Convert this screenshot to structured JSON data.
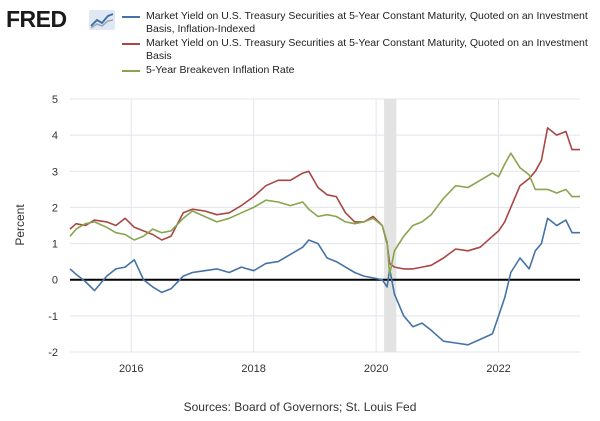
{
  "brand": {
    "name": "FRED",
    "mark_icon": "fred-chart-icon"
  },
  "source_text": "Sources: Board of Governors; St. Louis Fed",
  "legend": [
    {
      "label": "Market Yield on U.S. Treasury Securities at 5-Year Constant Maturity, Quoted on an Investment Basis, Inflation-Indexed",
      "color": "#4572a7"
    },
    {
      "label": "Market Yield on U.S. Treasury Securities at 5-Year Constant Maturity, Quoted on an Investment Basis",
      "color": "#aa4643"
    },
    {
      "label": "5-Year Breakeven Inflation Rate",
      "color": "#89a54e"
    }
  ],
  "chart_data": {
    "type": "line",
    "ylabel": "Percent",
    "xlabel": "",
    "ylim": [
      -2,
      5
    ],
    "yticks": [
      -2,
      -1,
      0,
      1,
      2,
      3,
      4,
      5
    ],
    "xlim": [
      2015.0,
      2023.33
    ],
    "xticks": [
      2016,
      2018,
      2020,
      2022
    ],
    "grid": true,
    "recession_shading": [
      [
        2020.13,
        2020.33
      ]
    ],
    "series": [
      {
        "name": "Market Yield on U.S. Treasury Securities at 5-Year Constant Maturity, Quoted on an Investment Basis, Inflation-Indexed",
        "color": "#4572a7",
        "x": [
          2015.0,
          2015.1,
          2015.25,
          2015.4,
          2015.6,
          2015.75,
          2015.9,
          2016.05,
          2016.2,
          2016.35,
          2016.5,
          2016.65,
          2016.85,
          2017.0,
          2017.2,
          2017.4,
          2017.6,
          2017.8,
          2018.0,
          2018.2,
          2018.4,
          2018.6,
          2018.8,
          2018.9,
          2019.05,
          2019.2,
          2019.35,
          2019.5,
          2019.65,
          2019.8,
          2019.95,
          2020.1,
          2020.18,
          2020.22,
          2020.3,
          2020.45,
          2020.6,
          2020.75,
          2020.9,
          2021.1,
          2021.3,
          2021.5,
          2021.7,
          2021.9,
          2022.0,
          2022.1,
          2022.2,
          2022.35,
          2022.5,
          2022.6,
          2022.7,
          2022.8,
          2022.95,
          2023.1,
          2023.2,
          2023.33
        ],
        "values": [
          0.3,
          0.15,
          -0.05,
          -0.3,
          0.1,
          0.3,
          0.35,
          0.55,
          0.0,
          -0.2,
          -0.35,
          -0.25,
          0.1,
          0.2,
          0.25,
          0.3,
          0.2,
          0.35,
          0.25,
          0.45,
          0.5,
          0.7,
          0.9,
          1.1,
          1.0,
          0.6,
          0.5,
          0.35,
          0.2,
          0.1,
          0.05,
          0.0,
          -0.2,
          0.3,
          -0.4,
          -1.0,
          -1.3,
          -1.2,
          -1.4,
          -1.7,
          -1.75,
          -1.8,
          -1.65,
          -1.5,
          -1.0,
          -0.5,
          0.2,
          0.6,
          0.3,
          0.8,
          1.0,
          1.7,
          1.5,
          1.65,
          1.3,
          1.3
        ]
      },
      {
        "name": "Market Yield on U.S. Treasury Securities at 5-Year Constant Maturity, Quoted on an Investment Basis",
        "color": "#aa4643",
        "x": [
          2015.0,
          2015.1,
          2015.25,
          2015.4,
          2015.6,
          2015.75,
          2015.9,
          2016.05,
          2016.2,
          2016.35,
          2016.5,
          2016.65,
          2016.85,
          2017.0,
          2017.2,
          2017.4,
          2017.6,
          2017.8,
          2018.0,
          2018.2,
          2018.4,
          2018.6,
          2018.8,
          2018.9,
          2019.05,
          2019.2,
          2019.35,
          2019.5,
          2019.65,
          2019.8,
          2019.95,
          2020.1,
          2020.18,
          2020.22,
          2020.3,
          2020.45,
          2020.6,
          2020.75,
          2020.9,
          2021.1,
          2021.3,
          2021.5,
          2021.7,
          2021.9,
          2022.0,
          2022.1,
          2022.2,
          2022.35,
          2022.5,
          2022.6,
          2022.7,
          2022.8,
          2022.95,
          2023.1,
          2023.2,
          2023.33
        ],
        "values": [
          1.4,
          1.55,
          1.5,
          1.65,
          1.6,
          1.5,
          1.7,
          1.45,
          1.35,
          1.25,
          1.1,
          1.2,
          1.85,
          1.95,
          1.9,
          1.8,
          1.85,
          2.05,
          2.3,
          2.6,
          2.75,
          2.75,
          2.95,
          3.0,
          2.55,
          2.35,
          2.3,
          1.85,
          1.6,
          1.6,
          1.75,
          1.5,
          1.0,
          0.45,
          0.35,
          0.3,
          0.3,
          0.35,
          0.4,
          0.6,
          0.85,
          0.8,
          0.9,
          1.2,
          1.35,
          1.6,
          2.0,
          2.6,
          2.8,
          3.0,
          3.3,
          4.2,
          4.0,
          4.1,
          3.6,
          3.6
        ]
      },
      {
        "name": "5-Year Breakeven Inflation Rate",
        "color": "#89a54e",
        "x": [
          2015.0,
          2015.1,
          2015.25,
          2015.4,
          2015.6,
          2015.75,
          2015.9,
          2016.05,
          2016.2,
          2016.35,
          2016.5,
          2016.65,
          2016.85,
          2017.0,
          2017.2,
          2017.4,
          2017.6,
          2017.8,
          2018.0,
          2018.2,
          2018.4,
          2018.6,
          2018.8,
          2018.9,
          2019.05,
          2019.2,
          2019.35,
          2019.5,
          2019.65,
          2019.8,
          2019.95,
          2020.1,
          2020.18,
          2020.22,
          2020.3,
          2020.45,
          2020.6,
          2020.75,
          2020.9,
          2021.1,
          2021.3,
          2021.5,
          2021.7,
          2021.9,
          2022.0,
          2022.1,
          2022.2,
          2022.35,
          2022.5,
          2022.6,
          2022.7,
          2022.8,
          2022.95,
          2023.1,
          2023.2,
          2023.33
        ],
        "values": [
          1.2,
          1.4,
          1.55,
          1.6,
          1.45,
          1.3,
          1.25,
          1.1,
          1.2,
          1.4,
          1.3,
          1.35,
          1.7,
          1.9,
          1.75,
          1.6,
          1.7,
          1.85,
          2.0,
          2.2,
          2.15,
          2.05,
          2.15,
          1.95,
          1.75,
          1.8,
          1.75,
          1.6,
          1.55,
          1.6,
          1.7,
          1.5,
          1.05,
          0.15,
          0.8,
          1.2,
          1.5,
          1.6,
          1.8,
          2.25,
          2.6,
          2.55,
          2.75,
          2.95,
          2.85,
          3.2,
          3.5,
          3.1,
          2.9,
          2.5,
          2.5,
          2.5,
          2.4,
          2.5,
          2.3,
          2.3
        ]
      }
    ]
  }
}
